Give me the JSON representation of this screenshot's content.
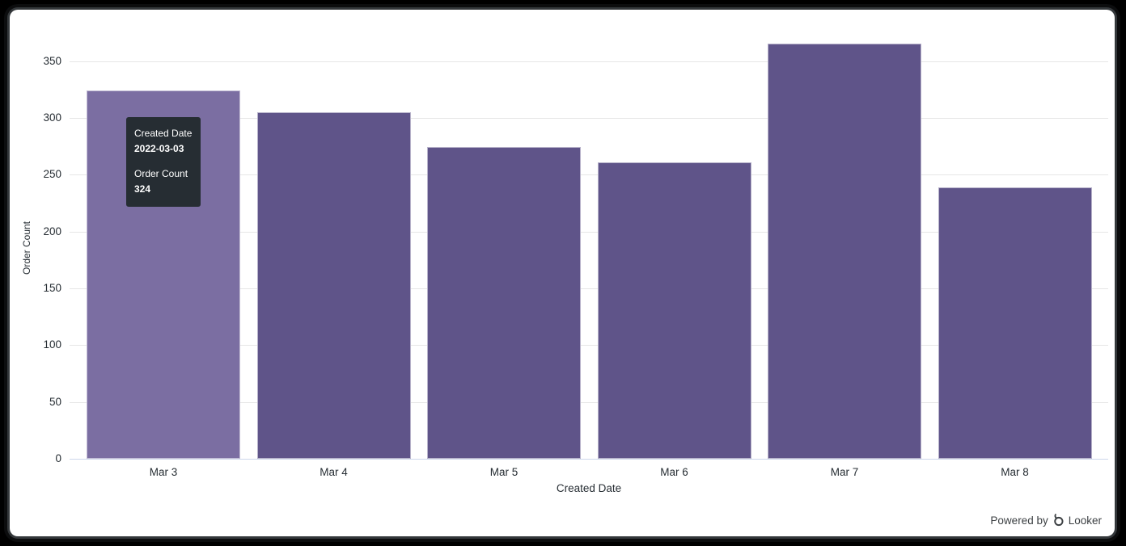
{
  "window": {
    "bg": "#000000",
    "panel_bg": "#ffffff"
  },
  "chart_data": {
    "type": "bar",
    "title": "",
    "xlabel": "Created Date",
    "ylabel": "Order Count",
    "categories": [
      "Mar 3",
      "Mar 4",
      "Mar 5",
      "Mar 6",
      "Mar 7",
      "Mar 8"
    ],
    "series": [
      {
        "name": "Order Count",
        "values": [
          324,
          305,
          274,
          261,
          365,
          239
        ]
      }
    ],
    "y_ticks": [
      0,
      50,
      100,
      150,
      200,
      250,
      300,
      350
    ],
    "ylim": [
      0,
      382
    ],
    "grid": true,
    "legend": "none",
    "highlighted_index": 0,
    "colors": {
      "bar": "#5f5489",
      "bar_highlight": "#7b6ea2",
      "gridline": "#e6e6e6",
      "axis_line": "#ccd6eb",
      "label": "#262d33"
    }
  },
  "tooltip": {
    "field1_label": "Created Date",
    "field1_value": "2022-03-03",
    "field2_label": "Order Count",
    "field2_value": "324",
    "bg": "#262d33",
    "text_color": "#ffffff"
  },
  "footer": {
    "powered_by_label": "Powered by",
    "brand_label": "Looker"
  }
}
